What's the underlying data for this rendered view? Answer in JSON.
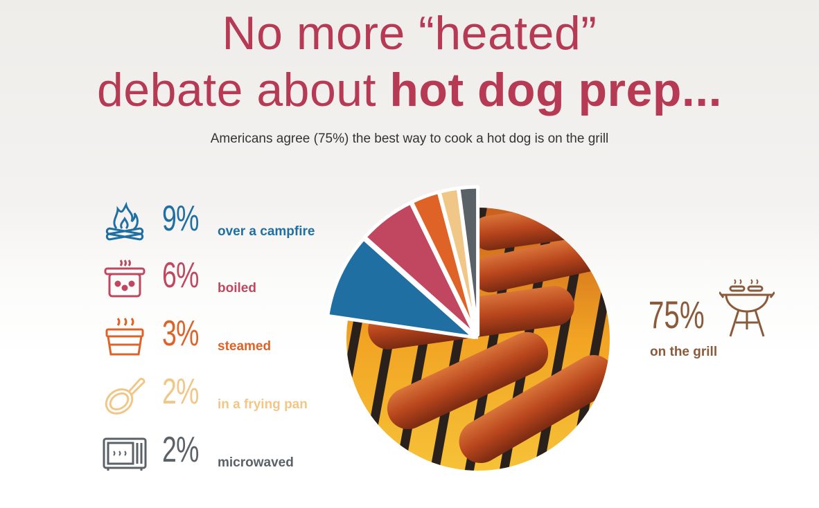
{
  "title": {
    "line1": "No more “heated”",
    "line2_plain": "debate about ",
    "line2_bold": "hot dog prep..."
  },
  "subtitle": "Americans agree (75%) the best way to cook a hot dog is on the grill",
  "chart_data": {
    "type": "pie",
    "slices": [
      {
        "label": "on the grill",
        "value": 75,
        "display": "75%",
        "color": "#8a5a3b",
        "icon": "grill-icon",
        "fill": "photo of hot dogs on grill"
      },
      {
        "label": "over a campfire",
        "value": 9,
        "display": "9%",
        "color": "#1f6fa3",
        "icon": "campfire-icon"
      },
      {
        "label": "boiled",
        "value": 6,
        "display": "6%",
        "color": "#c0475f",
        "icon": "pot-icon"
      },
      {
        "label": "steamed",
        "value": 3,
        "display": "3%",
        "color": "#df6227",
        "icon": "steamer-icon"
      },
      {
        "label": "in a frying pan",
        "value": 2,
        "display": "2%",
        "color": "#f0c787",
        "icon": "frying-pan-icon"
      },
      {
        "label": "microwaved",
        "value": 2,
        "display": "2%",
        "color": "#5a6268",
        "icon": "microwave-icon"
      }
    ]
  }
}
